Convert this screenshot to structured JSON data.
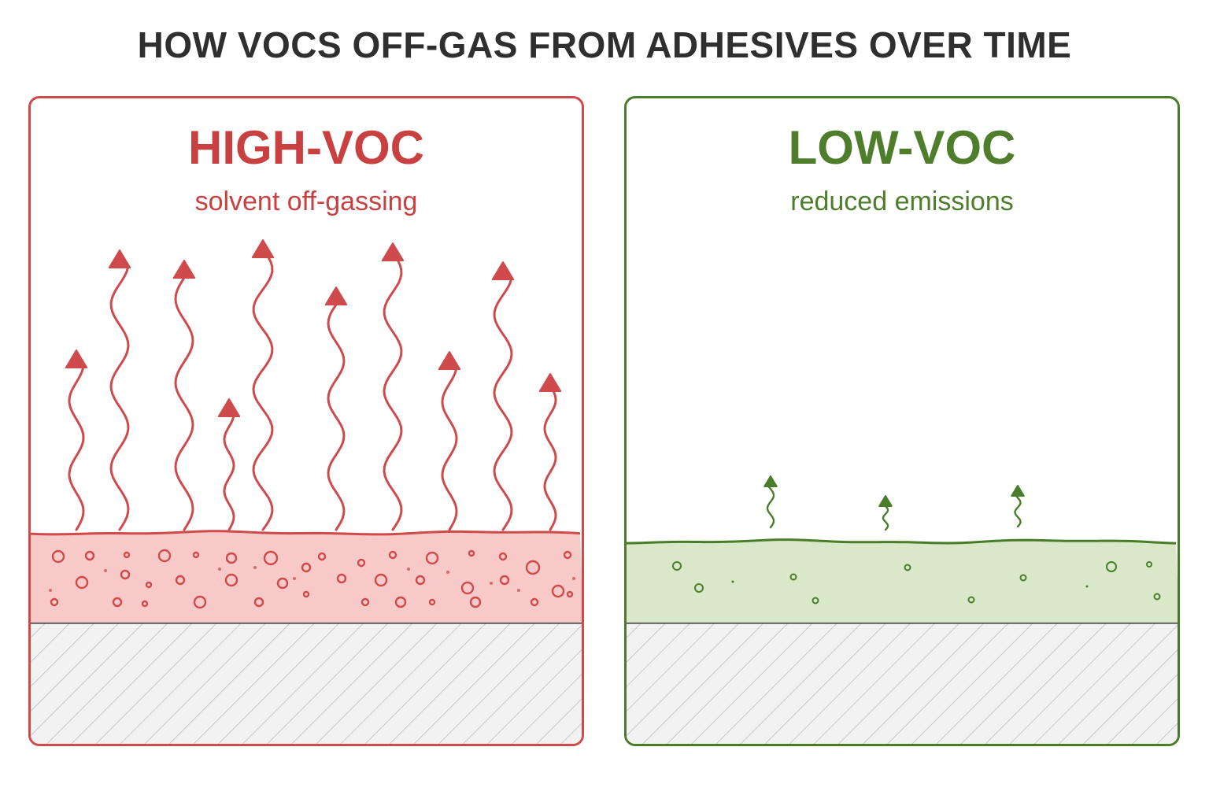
{
  "title": "HOW VOCS OFF-GAS FROM ADHESIVES OVER TIME",
  "panels": {
    "high": {
      "heading": "HIGH-VOC",
      "subtitle": "solvent off-gassing",
      "accent": "#cf4a4a",
      "layer_fill": "#f7c9c9",
      "emission_level": "high"
    },
    "low": {
      "heading": "LOW-VOC",
      "subtitle": "reduced emissions",
      "accent": "#4a7d2a",
      "layer_fill": "#d9e8c8",
      "emission_level": "low"
    }
  },
  "substrate": {
    "fill": "#f2f2f2",
    "hatch": "#bdbdbd",
    "border": "#333333"
  }
}
